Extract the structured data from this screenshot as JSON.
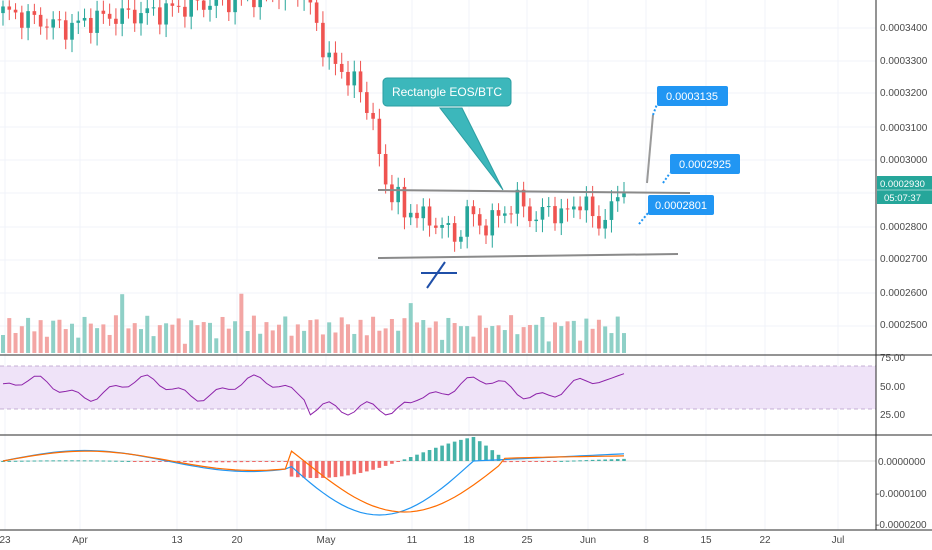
{
  "chart_data": {
    "type": "candlestick",
    "pair_annotation": "Rectangle EOS/BTC",
    "price_axis": {
      "ticks": [
        "0.0003400",
        "0.0003300",
        "0.0003200",
        "0.0003100",
        "0.0003000",
        "0.0002800",
        "0.0002700",
        "0.0002600",
        "0.0002500"
      ],
      "range": [
        0.000243,
        0.000353
      ]
    },
    "current_price": {
      "value": "0.0002930",
      "countdown": "05:07:37"
    },
    "price_labels": [
      {
        "id": "target-high",
        "text": "0.0003135"
      },
      {
        "id": "target-mid",
        "text": "0.0002925"
      },
      {
        "id": "target-low",
        "text": "0.0002801"
      }
    ],
    "rectangle": {
      "upper": [
        0.00029,
        0.00029
      ],
      "lower": [
        0.00027,
        0.000271
      ]
    },
    "rsi": {
      "ticks": [
        "75.00",
        "50.00",
        "25.00"
      ],
      "band": [
        30,
        70
      ]
    },
    "macd": {
      "ticks": [
        "0.0000000",
        "-0.0000100",
        "-0.0000200"
      ]
    },
    "x_axis": {
      "labels": [
        "23",
        "Apr",
        "13",
        "20",
        "May",
        "11",
        "18",
        "25",
        "Jun",
        "8",
        "15",
        "22",
        "Jul"
      ]
    },
    "colors": {
      "up": "#26a69a",
      "down": "#ef5350",
      "rsi_line": "#8e24aa",
      "rsi_band": "#f3e5f5",
      "macd_line": "#2196f3",
      "signal_line": "#ff6d00",
      "callout": "#2196f3",
      "annotation": "#3cb7bb"
    }
  }
}
